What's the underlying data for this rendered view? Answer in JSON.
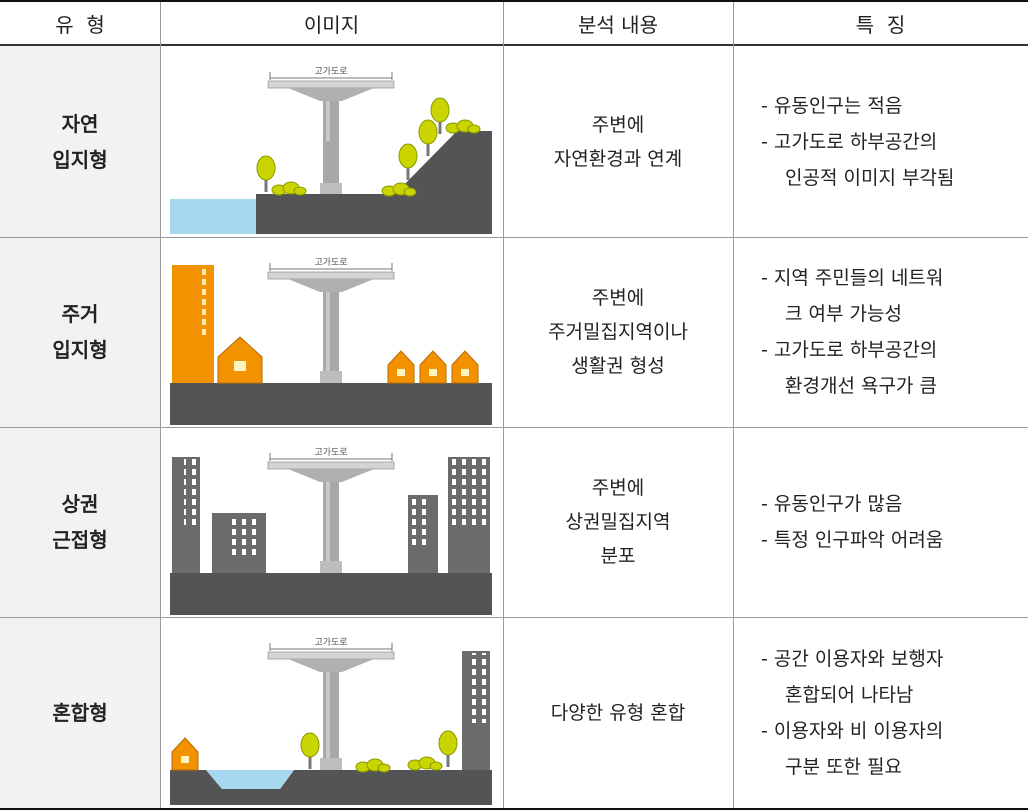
{
  "header": [
    "유  형",
    "이미지",
    "분석 내용",
    "특  징"
  ],
  "rows": [
    {
      "type": [
        "자연",
        "입지형"
      ],
      "image_label": "고가도로",
      "analysis": [
        "주변에",
        "자연환경과 연계"
      ],
      "features": [
        [
          "- 유동인구는 적음"
        ],
        [
          "- 고가도로 하부공간의",
          "인공적 이미지 부각됨"
        ]
      ]
    },
    {
      "type": [
        "주거",
        "입지형"
      ],
      "image_label": "고가도로",
      "analysis": [
        "주변에",
        "주거밀집지역이나",
        "생활권 형성"
      ],
      "features": [
        [
          "- 지역 주민들의 네트워",
          "크 여부 가능성"
        ],
        [
          "- 고가도로 하부공간의",
          "환경개선 욕구가 큼"
        ]
      ]
    },
    {
      "type": [
        "상권",
        "근접형"
      ],
      "image_label": "고가도로",
      "analysis": [
        "주변에",
        "상권밀집지역",
        "분포"
      ],
      "features": [
        [
          "- 유동인구가 많음"
        ],
        [
          "- 특정 인구파악 어려움"
        ]
      ]
    },
    {
      "type": [
        "혼합형"
      ],
      "image_label": "고가도로",
      "analysis": [
        "다양한 유형 혼합"
      ],
      "features": [
        [
          "- 공간 이용자와 보행자",
          "혼합되어 나타남"
        ],
        [
          "- 이용자와 비 이용자의",
          "구분 또한 필요"
        ]
      ]
    }
  ]
}
